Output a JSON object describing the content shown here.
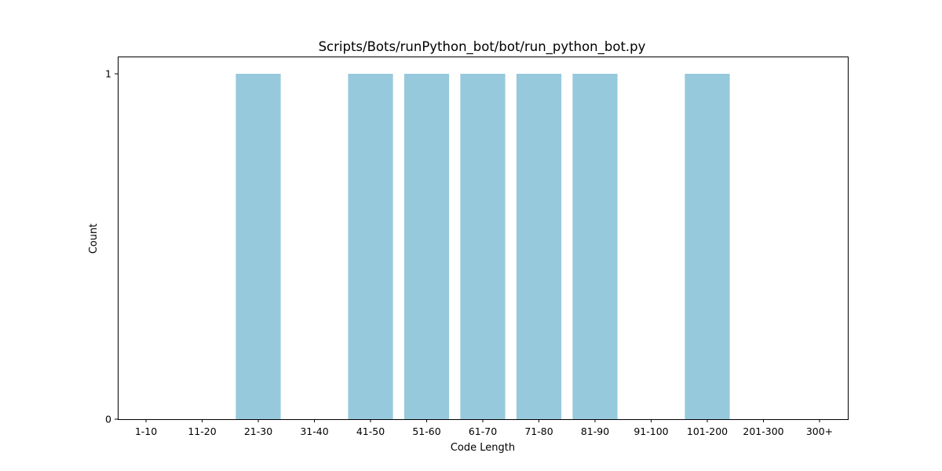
{
  "chart_data": {
    "type": "bar",
    "title": "Scripts/Bots/runPython_bot/bot/run_python_bot.py",
    "xlabel": "Code Length",
    "ylabel": "Count",
    "categories": [
      "1-10",
      "11-20",
      "21-30",
      "31-40",
      "41-50",
      "51-60",
      "61-70",
      "71-80",
      "81-90",
      "91-100",
      "101-200",
      "201-300",
      "300+"
    ],
    "values": [
      0,
      0,
      1,
      0,
      1,
      1,
      1,
      1,
      1,
      0,
      1,
      0,
      0
    ],
    "ylim": [
      0,
      1.05
    ],
    "yticks": [
      0,
      1
    ],
    "bar_color": "#96c9dc",
    "grid": false,
    "legend": "none"
  }
}
